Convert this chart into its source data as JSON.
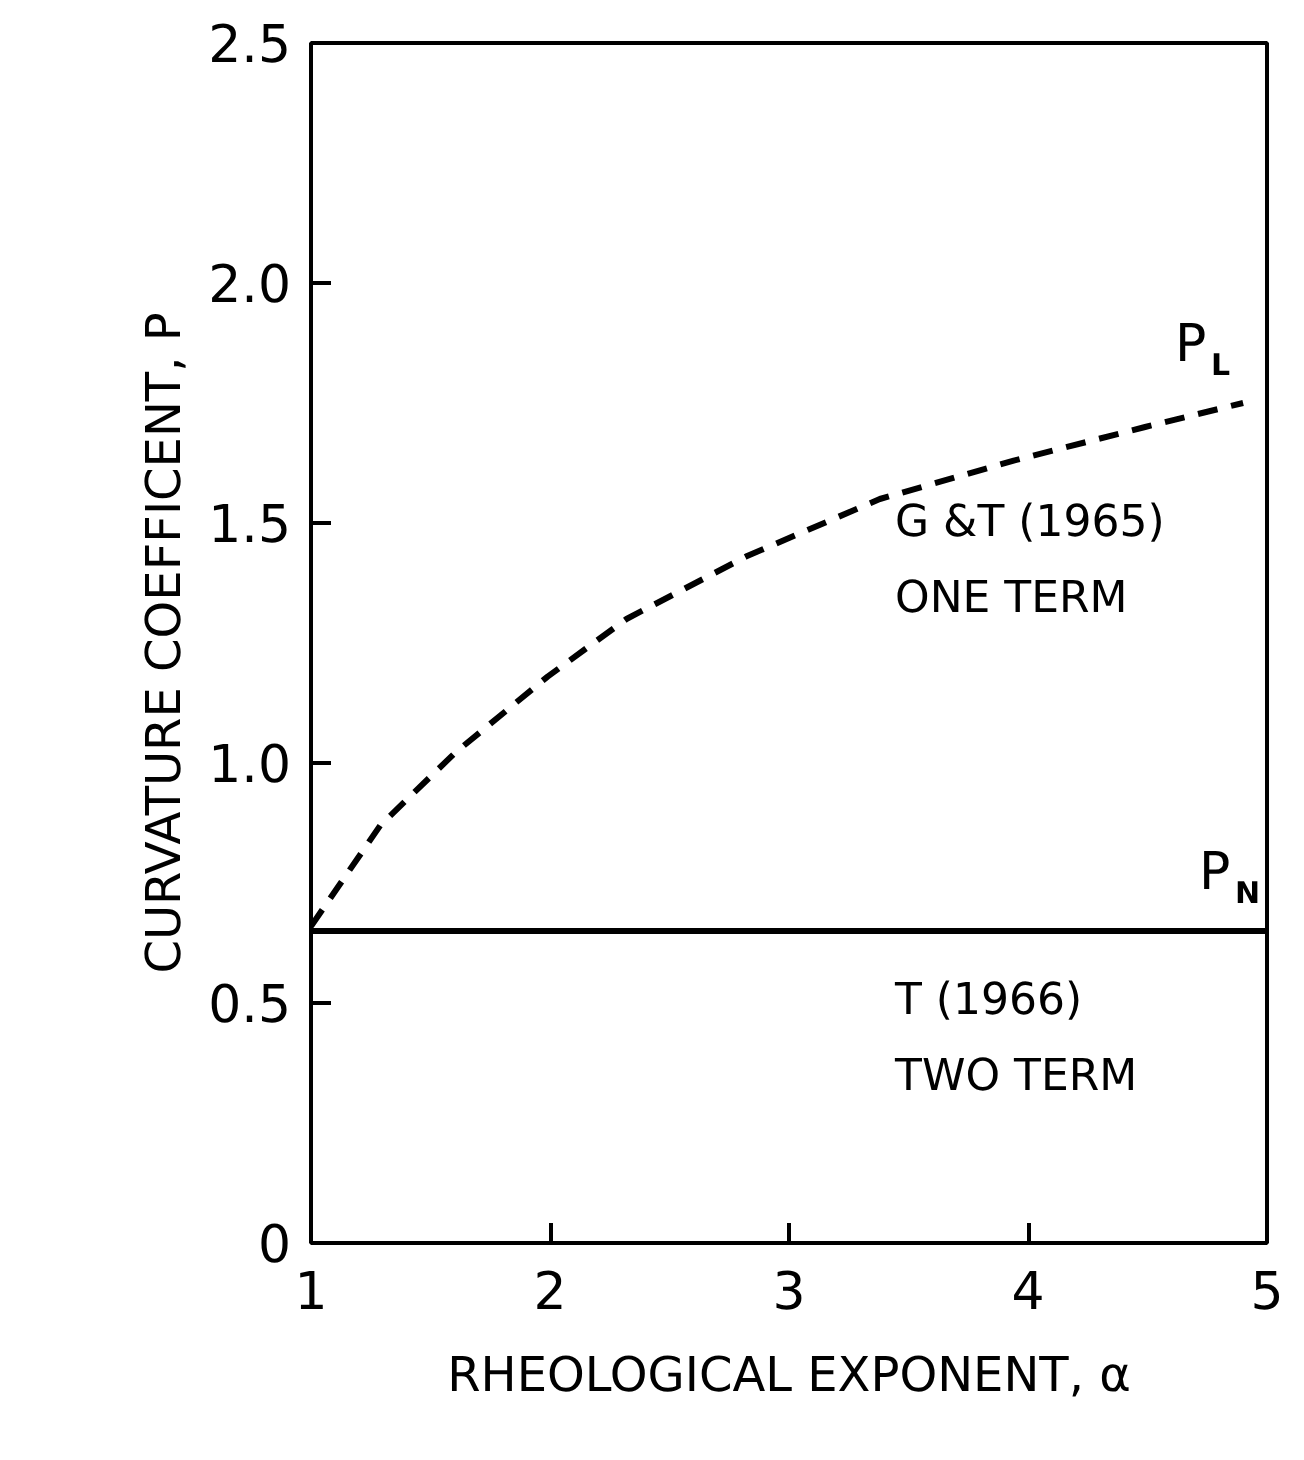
{
  "chart_data": {
    "type": "line",
    "xlabel": "RHEOLOGICAL EXPONENT, α",
    "ylabel": "CURVATURE COEFFICENT, P",
    "xlim": [
      1,
      5
    ],
    "ylim": [
      0,
      2.5
    ],
    "xticks": [
      1,
      2,
      3,
      4,
      5
    ],
    "yticks": [
      0,
      0.5,
      {
        "value": 1,
        "label": "1.0"
      },
      1.5,
      {
        "value": 2,
        "label": "2.0"
      },
      2.5
    ],
    "grid": false,
    "marker": "none",
    "series": [
      {
        "name": "P$_{L}$",
        "color": "#000000",
        "line_style": "dashed",
        "x": [
          1.0,
          1.29,
          1.6,
          1.99,
          2.32,
          2.82,
          3.38,
          3.94,
          4.49,
          4.9
        ],
        "values": [
          0.66,
          0.87,
          1.02,
          1.18,
          1.3,
          1.43,
          1.55,
          1.63,
          1.7,
          1.75
        ]
      },
      {
        "name": "P$_{N}$",
        "color": "#000000",
        "line_style": "solid",
        "x": [
          1,
          5
        ],
        "values": [
          0.65,
          0.65
        ]
      }
    ],
    "annotations": [
      "G &T (1965)",
      "ONE TERM",
      "T (1966)",
      "TWO TERM"
    ]
  }
}
